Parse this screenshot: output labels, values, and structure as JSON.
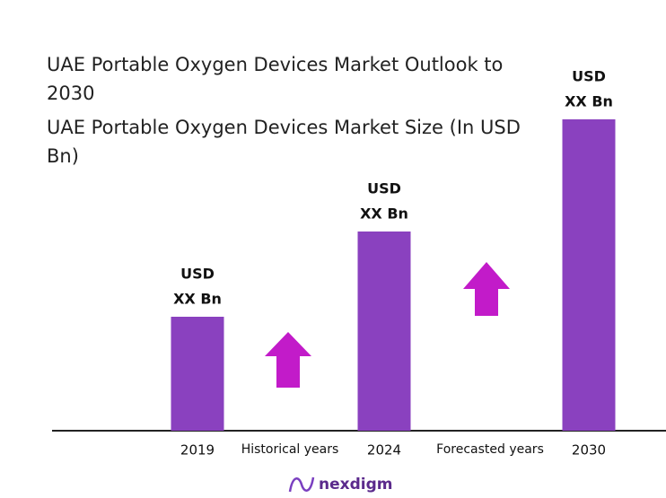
{
  "chart_data": {
    "type": "bar",
    "title": "UAE Portable Oxygen Devices Market Outlook to 2030",
    "subtitle": "UAE Portable Oxygen Devices Market Size (In USD Bn)",
    "categories": [
      "2019",
      "2024",
      "2030"
    ],
    "values": [
      127,
      222,
      347
    ],
    "value_labels": [
      [
        "USD",
        "XX Bn"
      ],
      [
        "USD",
        "XX Bn"
      ],
      [
        "USD",
        "XX Bn"
      ]
    ],
    "color": "#8a41bf",
    "annotations": [
      "Historical years",
      "Forecasted years"
    ],
    "brand": "nexdigm"
  }
}
